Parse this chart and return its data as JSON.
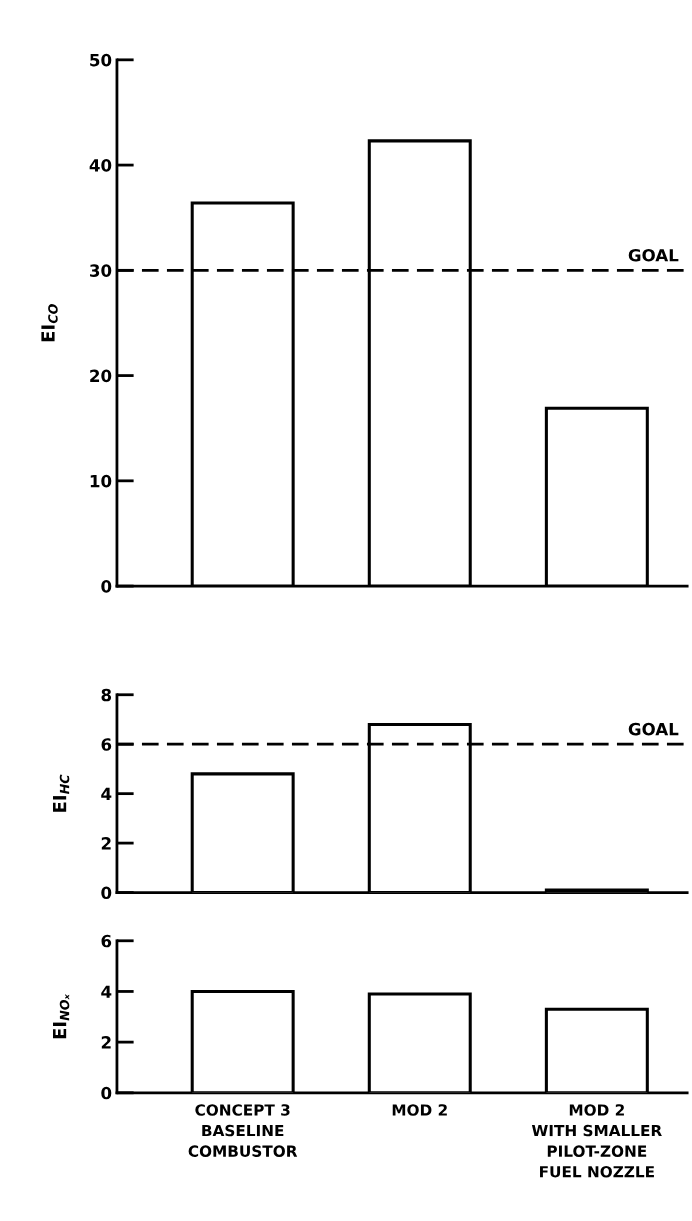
{
  "chart_data": [
    {
      "type": "bar",
      "ylabel": "EI$_{CO}$",
      "categories": [
        null,
        null,
        null
      ],
      "values": [
        36.4,
        42.3,
        16.9
      ],
      "color": "#ffffff",
      "ylim": [
        0,
        50
      ],
      "yticks": [
        0,
        10,
        20,
        30,
        40,
        50
      ],
      "tick_labels": "y",
      "ref_lines": [
        {
          "axis": "y",
          "value": 30,
          "label": "GOAL",
          "line_style": "dashed",
          "color": "#000000"
        }
      ]
    },
    {
      "type": "bar",
      "ylabel": "EI$_{HC}$",
      "categories": [
        null,
        null,
        null
      ],
      "values": [
        4.8,
        6.8,
        0.1
      ],
      "color": "#ffffff",
      "ylim": [
        0,
        8
      ],
      "yticks": [
        0,
        2,
        4,
        6,
        8
      ],
      "tick_labels": "y",
      "ref_lines": [
        {
          "axis": "y",
          "value": 6,
          "label": "GOAL",
          "line_style": "dashed",
          "color": "#000000"
        }
      ]
    },
    {
      "type": "bar",
      "ylabel": "EI$_{NOₓ}$",
      "categories": [
        "CONCEPT 3\nBASELINE\nCOMBUSTOR",
        "MOD 2",
        "MOD 2\nWITH SMALLER\nPILOT-ZONE\nFUEL NOZZLE"
      ],
      "values": [
        4.0,
        3.9,
        3.3
      ],
      "color": "#ffffff",
      "ylim": [
        0,
        6
      ],
      "yticks": [
        0,
        2,
        4,
        6
      ]
    }
  ]
}
